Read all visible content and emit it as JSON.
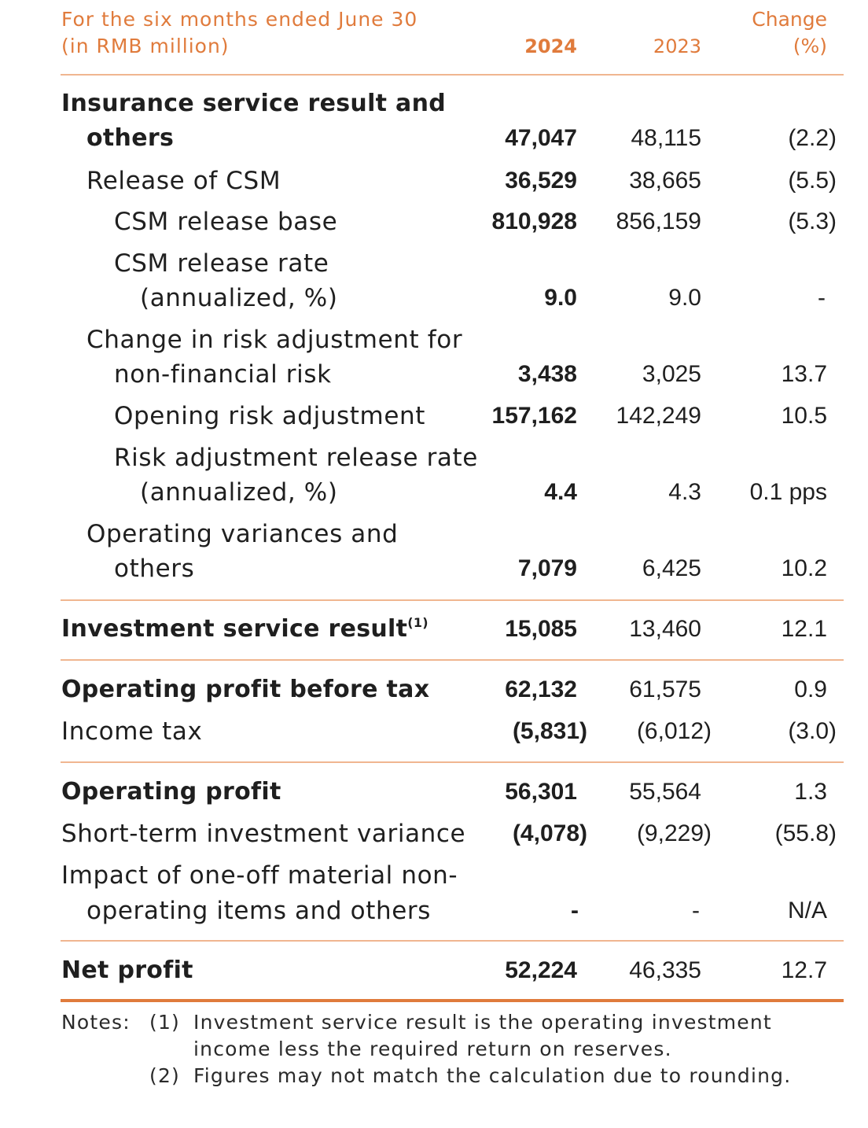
{
  "header": {
    "label_line1": "For the six months ended June 30",
    "label_line2": "(in RMB million)",
    "col_2024": "2024",
    "col_2023": "2023",
    "col_change_line1": "Change",
    "col_change_line2": "(%)"
  },
  "rows": {
    "insurance_service": {
      "label_line1": "Insurance service result and",
      "label_line2": "others",
      "v2024": "47,047",
      "v2023": "48,115",
      "change": "(2.2)"
    },
    "release_csm": {
      "label": "Release of CSM",
      "v2024": "36,529",
      "v2023": "38,665",
      "change": "(5.5)"
    },
    "csm_release_base": {
      "label": "CSM release base",
      "v2024": "810,928",
      "v2023": "856,159",
      "change": "(5.3)"
    },
    "csm_release_rate": {
      "label_line1": "CSM release rate",
      "label_line2": "(annualized, %)",
      "v2024": "9.0",
      "v2023": "9.0",
      "change": "-"
    },
    "change_risk_adj": {
      "label_line1": "Change in risk adjustment for",
      "label_line2": "non-financial risk",
      "v2024": "3,438",
      "v2023": "3,025",
      "change": "13.7"
    },
    "opening_risk_adj": {
      "label": "Opening risk adjustment",
      "v2024": "157,162",
      "v2023": "142,249",
      "change": "10.5"
    },
    "risk_adj_release_rate": {
      "label_line1": "Risk adjustment release rate",
      "label_line2": "(annualized, %)",
      "v2024": "4.4",
      "v2023": "4.3",
      "change": "0.1 pps"
    },
    "operating_variances": {
      "label_line1": "Operating variances and",
      "label_line2": "others",
      "v2024": "7,079",
      "v2023": "6,425",
      "change": "10.2"
    },
    "investment_service": {
      "label": "Investment service result",
      "sup": "(1)",
      "v2024": "15,085",
      "v2023": "13,460",
      "change": "12.1"
    },
    "op_profit_before_tax": {
      "label": "Operating profit before tax",
      "v2024": "62,132",
      "v2023": "61,575",
      "change": "0.9"
    },
    "income_tax": {
      "label": "Income tax",
      "v2024": "(5,831)",
      "v2023": "(6,012)",
      "change": "(3.0)"
    },
    "operating_profit": {
      "label": "Operating profit",
      "v2024": "56,301",
      "v2023": "55,564",
      "change": "1.3"
    },
    "short_term_var": {
      "label": "Short-term investment variance",
      "v2024": "(4,078)",
      "v2023": "(9,229)",
      "change": "(55.8)"
    },
    "one_off": {
      "label_line1": "Impact of one-off material non-",
      "label_line2": "operating items and others",
      "v2024": "-",
      "v2023": "-",
      "change": "N/A"
    },
    "net_profit": {
      "label": "Net profit",
      "v2024": "52,224",
      "v2023": "46,335",
      "change": "12.7"
    }
  },
  "notes": {
    "prefix": "Notes:",
    "n1_marker": "(1)",
    "n1_line1": "Investment service result is the operating investment",
    "n1_line2": "income less the required return on reserves.",
    "n2_marker": "(2)",
    "n2_line1": "Figures may not match the calculation due to rounding."
  },
  "colors": {
    "accent": "#e07b3c",
    "rule_light": "#f0b690",
    "text": "#1f1f1f"
  }
}
